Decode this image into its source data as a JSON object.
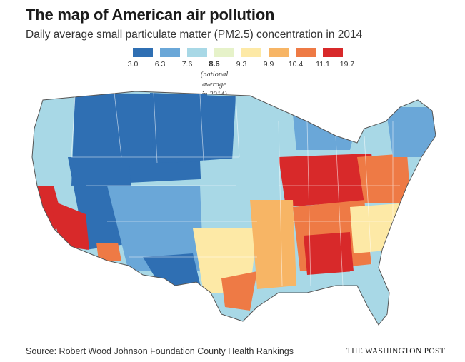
{
  "title": "The map of American air pollution",
  "subtitle": "Daily average small particulate matter (PM2.5) concentration in 2014",
  "legend": {
    "colors": [
      "#2f6fb3",
      "#6aa7d8",
      "#a8d8e6",
      "#e6f2c9",
      "#fde9a6",
      "#f7b565",
      "#ee7a45",
      "#d8292a"
    ],
    "ticks": [
      "3.0",
      "6.3",
      "7.6",
      "8.6",
      "9.3",
      "9.9",
      "10.4",
      "11.1",
      "19.7"
    ],
    "highlight_tick": "8.6",
    "note_lines": [
      "(national",
      "average",
      "in 2014)"
    ]
  },
  "map": {
    "regions": [
      {
        "name": "west-coast-north",
        "level": 2
      },
      {
        "name": "northern-rockies",
        "level": 0
      },
      {
        "name": "great-basin",
        "level": 0
      },
      {
        "name": "southwest",
        "level": 1
      },
      {
        "name": "california-central",
        "level": 7
      },
      {
        "name": "southern-california",
        "level": 7
      },
      {
        "name": "arizona-south",
        "level": 6
      },
      {
        "name": "northern-plains",
        "level": 0
      },
      {
        "name": "central-plains",
        "level": 2
      },
      {
        "name": "texas-west",
        "level": 0
      },
      {
        "name": "texas-central",
        "level": 4
      },
      {
        "name": "texas-east",
        "level": 6
      },
      {
        "name": "upper-midwest",
        "level": 2
      },
      {
        "name": "midwest-ohio-valley",
        "level": 7
      },
      {
        "name": "mississippi-valley",
        "level": 5
      },
      {
        "name": "southeast",
        "level": 6
      },
      {
        "name": "georgia-alabama",
        "level": 7
      },
      {
        "name": "florida",
        "level": 2
      },
      {
        "name": "carolinas",
        "level": 4
      },
      {
        "name": "mid-atlantic",
        "level": 6
      },
      {
        "name": "new-england",
        "level": 1
      },
      {
        "name": "great-lakes-north",
        "level": 1
      }
    ]
  },
  "footer": {
    "source": "Source: Robert Wood Johnson Foundation County Health Rankings",
    "brand": "THE WASHINGTON POST"
  }
}
